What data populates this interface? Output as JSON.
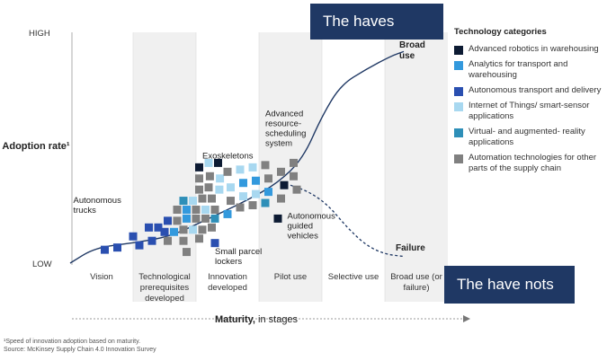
{
  "callouts": {
    "haves": "The haves",
    "have_nots": "The have nots"
  },
  "legend": {
    "title": "Technology categories",
    "items": [
      {
        "label": "Advanced robotics in warehousing",
        "color": "#0d1b33"
      },
      {
        "label": "Analytics for transport and warehousing",
        "color": "#3399dd"
      },
      {
        "label": "Autonomous transport and delivery",
        "color": "#2a4fb0"
      },
      {
        "label": "Internet of Things/ smart-sensor applications",
        "color": "#a8d8f0"
      },
      {
        "label": "Virtual- and augmented- reality applications",
        "color": "#2e8fb8"
      },
      {
        "label": "Automation technologies for other parts of the supply chain",
        "color": "#808080"
      }
    ]
  },
  "footnote": {
    "line1": "¹Speed of innovation adoption based on maturity.",
    "line2": "Source: McKinsey Supply Chain 4.0 Innovation Survey"
  },
  "chart_data": {
    "type": "scatter",
    "ylabel": "Adoption rate¹",
    "y_high": "HIGH",
    "y_low": "LOW",
    "xlabel_bold": "Maturity,",
    "xlabel_rest": " in stages",
    "stages": [
      "Vision",
      "Technological prerequisites developed",
      "Innovation developed",
      "Pilot use",
      "Selective use",
      "Broad use (or failure)"
    ],
    "curve_labels": {
      "broad_use": "Broad use",
      "failure": "Failure"
    },
    "annotations": [
      {
        "text": "Exoskeletons",
        "stage": 2.1,
        "adoption": 0.47
      },
      {
        "text": "Autonomous trucks",
        "stage": 0.05,
        "adoption": 0.27
      },
      {
        "text": "Advanced resource- scheduling system",
        "stage": 3.1,
        "adoption": 0.66
      },
      {
        "text": "Autonomous guided vehicles",
        "stage": 3.45,
        "adoption": 0.2
      },
      {
        "text": "Small parcel lockers",
        "stage": 2.3,
        "adoption": 0.04
      }
    ],
    "success_curve": [
      [
        0,
        0
      ],
      [
        0.4,
        0.07
      ],
      [
        1.0,
        0.09
      ],
      [
        1.6,
        0.12
      ],
      [
        2.2,
        0.2
      ],
      [
        2.8,
        0.28
      ],
      [
        3.3,
        0.36
      ],
      [
        3.7,
        0.47
      ],
      [
        4.0,
        0.66
      ],
      [
        4.3,
        0.8
      ],
      [
        4.7,
        0.87
      ],
      [
        5.1,
        0.93
      ],
      [
        5.3,
        0.95
      ]
    ],
    "failure_curve": [
      [
        3.5,
        0.35
      ],
      [
        3.8,
        0.32
      ],
      [
        4.1,
        0.26
      ],
      [
        4.4,
        0.16
      ],
      [
        4.7,
        0.08
      ],
      [
        5.0,
        0.04
      ],
      [
        5.3,
        0.03
      ]
    ],
    "points": [
      {
        "x": 2.05,
        "y": 0.43,
        "c": 0
      },
      {
        "x": 2.2,
        "y": 0.45,
        "c": 3
      },
      {
        "x": 2.35,
        "y": 0.45,
        "c": 0
      },
      {
        "x": 2.05,
        "y": 0.38,
        "c": 5
      },
      {
        "x": 2.22,
        "y": 0.39,
        "c": 5
      },
      {
        "x": 2.38,
        "y": 0.38,
        "c": 3
      },
      {
        "x": 2.05,
        "y": 0.33,
        "c": 5
      },
      {
        "x": 2.2,
        "y": 0.34,
        "c": 5
      },
      {
        "x": 2.37,
        "y": 0.33,
        "c": 3
      },
      {
        "x": 1.8,
        "y": 0.28,
        "c": 4
      },
      {
        "x": 1.95,
        "y": 0.28,
        "c": 3
      },
      {
        "x": 2.1,
        "y": 0.29,
        "c": 5
      },
      {
        "x": 2.25,
        "y": 0.29,
        "c": 5
      },
      {
        "x": 1.7,
        "y": 0.24,
        "c": 5
      },
      {
        "x": 1.85,
        "y": 0.24,
        "c": 1
      },
      {
        "x": 2.0,
        "y": 0.24,
        "c": 5
      },
      {
        "x": 2.15,
        "y": 0.24,
        "c": 3
      },
      {
        "x": 2.3,
        "y": 0.24,
        "c": 5
      },
      {
        "x": 1.55,
        "y": 0.19,
        "c": 2
      },
      {
        "x": 1.7,
        "y": 0.19,
        "c": 5
      },
      {
        "x": 1.85,
        "y": 0.2,
        "c": 1
      },
      {
        "x": 2.0,
        "y": 0.2,
        "c": 5
      },
      {
        "x": 2.15,
        "y": 0.2,
        "c": 5
      },
      {
        "x": 2.3,
        "y": 0.2,
        "c": 4
      },
      {
        "x": 1.5,
        "y": 0.14,
        "c": 2
      },
      {
        "x": 1.65,
        "y": 0.14,
        "c": 1
      },
      {
        "x": 1.8,
        "y": 0.15,
        "c": 5
      },
      {
        "x": 1.95,
        "y": 0.15,
        "c": 3
      },
      {
        "x": 2.1,
        "y": 0.15,
        "c": 5
      },
      {
        "x": 2.25,
        "y": 0.16,
        "c": 5
      },
      {
        "x": 1.3,
        "y": 0.1,
        "c": 2
      },
      {
        "x": 1.55,
        "y": 0.1,
        "c": 5
      },
      {
        "x": 1.8,
        "y": 0.1,
        "c": 5
      },
      {
        "x": 2.05,
        "y": 0.11,
        "c": 5
      },
      {
        "x": 1.0,
        "y": 0.12,
        "c": 2
      },
      {
        "x": 1.1,
        "y": 0.08,
        "c": 2
      },
      {
        "x": 0.75,
        "y": 0.07,
        "c": 2
      },
      {
        "x": 0.55,
        "y": 0.06,
        "c": 2
      },
      {
        "x": 1.25,
        "y": 0.16,
        "c": 2
      },
      {
        "x": 1.4,
        "y": 0.16,
        "c": 2
      },
      {
        "x": 1.85,
        "y": 0.05,
        "c": 5
      },
      {
        "x": 2.3,
        "y": 0.09,
        "c": 2
      },
      {
        "x": 2.5,
        "y": 0.41,
        "c": 5
      },
      {
        "x": 2.55,
        "y": 0.34,
        "c": 3
      },
      {
        "x": 2.55,
        "y": 0.28,
        "c": 5
      },
      {
        "x": 2.5,
        "y": 0.22,
        "c": 1
      },
      {
        "x": 2.7,
        "y": 0.42,
        "c": 3
      },
      {
        "x": 2.75,
        "y": 0.36,
        "c": 1
      },
      {
        "x": 2.75,
        "y": 0.3,
        "c": 3
      },
      {
        "x": 2.7,
        "y": 0.25,
        "c": 5
      },
      {
        "x": 2.9,
        "y": 0.43,
        "c": 3
      },
      {
        "x": 2.95,
        "y": 0.37,
        "c": 1
      },
      {
        "x": 2.95,
        "y": 0.31,
        "c": 3
      },
      {
        "x": 2.9,
        "y": 0.26,
        "c": 5
      },
      {
        "x": 3.1,
        "y": 0.44,
        "c": 5
      },
      {
        "x": 3.15,
        "y": 0.38,
        "c": 5
      },
      {
        "x": 3.15,
        "y": 0.32,
        "c": 1
      },
      {
        "x": 3.1,
        "y": 0.27,
        "c": 4
      },
      {
        "x": 3.35,
        "y": 0.41,
        "c": 5
      },
      {
        "x": 3.4,
        "y": 0.35,
        "c": 0
      },
      {
        "x": 3.35,
        "y": 0.29,
        "c": 5
      },
      {
        "x": 3.55,
        "y": 0.39,
        "c": 5
      },
      {
        "x": 3.55,
        "y": 0.45,
        "c": 5
      },
      {
        "x": 3.6,
        "y": 0.33,
        "c": 5
      },
      {
        "x": 3.3,
        "y": 0.2,
        "c": 0
      }
    ]
  }
}
